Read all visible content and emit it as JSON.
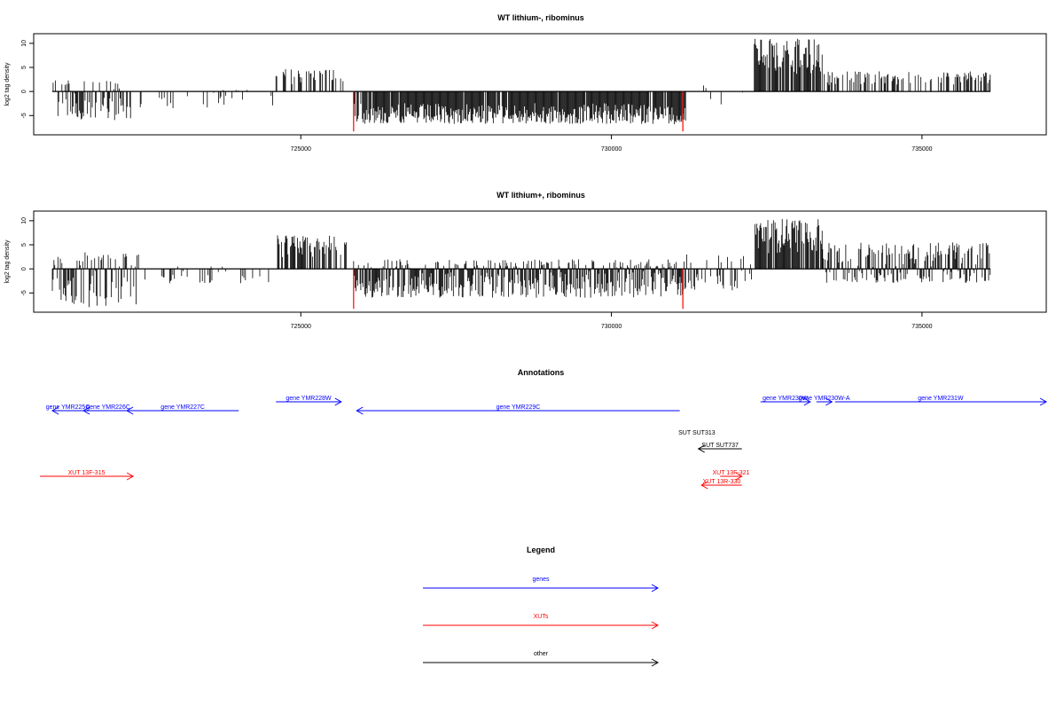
{
  "chart_data": [
    {
      "type": "bar",
      "title": "WT lithium-, ribominus",
      "ylabel": "log2 tag density",
      "xlim": [
        720700,
        737000
      ],
      "ylim": [
        -9,
        12
      ],
      "yticks": [
        -5,
        0,
        5,
        10
      ],
      "xticks": [
        725000,
        730000,
        735000
      ],
      "xtick_labels": [
        "725000",
        "730000",
        "735000"
      ],
      "bar_color": "#000000",
      "marker_color": "#ff0000",
      "markers": [
        {
          "x": 725850,
          "y": -8.3
        },
        {
          "x": 731150,
          "y": -8.3
        }
      ],
      "regions": [
        {
          "start": 721000,
          "end": 722300,
          "min": -6.0,
          "max": 2.5,
          "density": 0.6
        },
        {
          "start": 722300,
          "end": 724600,
          "min": -3.5,
          "max": 0.5,
          "density": 0.12
        },
        {
          "start": 724600,
          "end": 725700,
          "min": 0,
          "max": 4.7,
          "density": 0.35
        },
        {
          "start": 725850,
          "end": 731200,
          "min": -6.8,
          "max": 0,
          "density": 0.95
        },
        {
          "start": 731200,
          "end": 732300,
          "min": -3.5,
          "max": 1.7,
          "density": 0.1
        },
        {
          "start": 732300,
          "end": 733400,
          "min": 0,
          "max": 11.0,
          "density": 0.85
        },
        {
          "start": 733400,
          "end": 736100,
          "min": 0,
          "max": 4.2,
          "density": 0.45
        }
      ]
    },
    {
      "type": "bar",
      "title": "WT lithium+, ribominus",
      "ylabel": "log2 tag density",
      "xlim": [
        720700,
        737000
      ],
      "ylim": [
        -9,
        12
      ],
      "yticks": [
        -5,
        0,
        5,
        10
      ],
      "xticks": [
        725000,
        730000,
        735000
      ],
      "xtick_labels": [
        "725000",
        "730000",
        "735000"
      ],
      "bar_color": "#000000",
      "marker_color": "#ff0000",
      "markers": [
        {
          "x": 725850,
          "y": -8.3
        },
        {
          "x": 731150,
          "y": -8.3
        }
      ],
      "regions": [
        {
          "start": 721000,
          "end": 722400,
          "min": -8.0,
          "max": 3.5,
          "density": 0.75
        },
        {
          "start": 722400,
          "end": 724600,
          "min": -3.0,
          "max": 0.5,
          "density": 0.18
        },
        {
          "start": 724600,
          "end": 725750,
          "min": 0,
          "max": 7.0,
          "density": 0.7
        },
        {
          "start": 725850,
          "end": 731200,
          "min": -6.0,
          "max": 2.0,
          "density": 0.95
        },
        {
          "start": 731200,
          "end": 732300,
          "min": -4.5,
          "max": 3.5,
          "density": 0.4
        },
        {
          "start": 732300,
          "end": 733400,
          "min": 0,
          "max": 10.5,
          "density": 0.9
        },
        {
          "start": 733400,
          "end": 736100,
          "min": -3.0,
          "max": 5.5,
          "density": 0.85
        }
      ]
    }
  ],
  "annotations": {
    "title": "Annotations",
    "features": [
      {
        "label": "gene YMR225C",
        "start": 721500,
        "end": 721000,
        "row": 0,
        "category": "genes"
      },
      {
        "label": "gene YMR226C",
        "start": 722300,
        "end": 721500,
        "row": 0,
        "category": "genes"
      },
      {
        "label": "gene YMR227C",
        "start": 724000,
        "end": 722200,
        "row": 0,
        "category": "genes"
      },
      {
        "label": "gene YMR228W",
        "start": 724600,
        "end": 725650,
        "row": 1,
        "category": "genes"
      },
      {
        "label": "gene YMR229C",
        "start": 731100,
        "end": 725900,
        "row": 0,
        "category": "genes"
      },
      {
        "label": "gene YMR230W",
        "start": 732400,
        "end": 733200,
        "row": 1,
        "category": "genes"
      },
      {
        "label": "gene YMR230W-A",
        "start": 733300,
        "end": 733550,
        "row": 1,
        "category": "genes"
      },
      {
        "label": "gene YMR231W",
        "start": 733600,
        "end": 737000,
        "row": 1,
        "category": "genes"
      },
      {
        "label": "SUT SUT313",
        "start": 731050,
        "end": 731700,
        "row": 2,
        "category": "other",
        "noarrow": true
      },
      {
        "label": "SUT SUT737",
        "start": 732100,
        "end": 731400,
        "row": 3,
        "category": "other"
      },
      {
        "label": "XUT 13F-315",
        "start": 720800,
        "end": 722300,
        "row": 4,
        "category": "xuts"
      },
      {
        "label": "XUT 13F-321",
        "start": 731750,
        "end": 732100,
        "row": 4,
        "category": "xuts"
      },
      {
        "label": "XUT 13R-330",
        "start": 732100,
        "end": 731450,
        "row": 5,
        "category": "xuts"
      }
    ]
  },
  "legend": {
    "title": "Legend",
    "entries": [
      {
        "label": "genes",
        "category": "genes"
      },
      {
        "label": "XUTs",
        "category": "xuts"
      },
      {
        "label": "other",
        "category": "other"
      }
    ]
  },
  "colors": {
    "genes": "#0000ff",
    "xuts": "#ff0000",
    "other": "#000000"
  }
}
